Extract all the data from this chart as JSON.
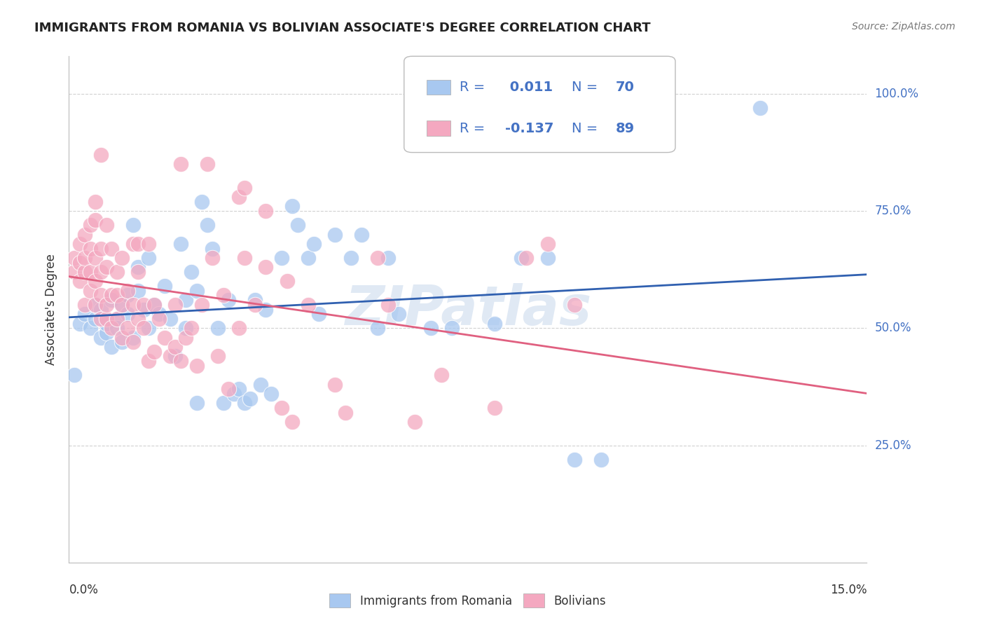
{
  "title": "IMMIGRANTS FROM ROMANIA VS BOLIVIAN ASSOCIATE'S DEGREE CORRELATION CHART",
  "source": "Source: ZipAtlas.com",
  "ylabel": "Associate's Degree",
  "yticks": [
    "25.0%",
    "50.0%",
    "75.0%",
    "100.0%"
  ],
  "ytick_vals": [
    0.25,
    0.5,
    0.75,
    1.0
  ],
  "xlim": [
    0.0,
    0.15
  ],
  "ylim": [
    0.0,
    1.08
  ],
  "watermark": "ZIPatlas",
  "blue_color": "#A8C8F0",
  "pink_color": "#F4A8C0",
  "blue_line_color": "#3060B0",
  "pink_line_color": "#E06080",
  "label_color": "#4472C4",
  "legend_text_color": "#1A237E",
  "romania_scatter": [
    [
      0.002,
      0.51
    ],
    [
      0.003,
      0.53
    ],
    [
      0.004,
      0.5
    ],
    [
      0.005,
      0.52
    ],
    [
      0.005,
      0.55
    ],
    [
      0.006,
      0.48
    ],
    [
      0.006,
      0.54
    ],
    [
      0.007,
      0.49
    ],
    [
      0.007,
      0.51
    ],
    [
      0.008,
      0.46
    ],
    [
      0.008,
      0.56
    ],
    [
      0.009,
      0.52
    ],
    [
      0.009,
      0.5
    ],
    [
      0.01,
      0.47
    ],
    [
      0.01,
      0.55
    ],
    [
      0.011,
      0.53
    ],
    [
      0.011,
      0.57
    ],
    [
      0.012,
      0.48
    ],
    [
      0.012,
      0.72
    ],
    [
      0.013,
      0.58
    ],
    [
      0.013,
      0.63
    ],
    [
      0.014,
      0.54
    ],
    [
      0.015,
      0.5
    ],
    [
      0.015,
      0.65
    ],
    [
      0.016,
      0.55
    ],
    [
      0.017,
      0.53
    ],
    [
      0.018,
      0.59
    ],
    [
      0.019,
      0.52
    ],
    [
      0.02,
      0.44
    ],
    [
      0.021,
      0.68
    ],
    [
      0.022,
      0.5
    ],
    [
      0.022,
      0.56
    ],
    [
      0.023,
      0.62
    ],
    [
      0.024,
      0.34
    ],
    [
      0.024,
      0.58
    ],
    [
      0.025,
      0.77
    ],
    [
      0.026,
      0.72
    ],
    [
      0.027,
      0.67
    ],
    [
      0.028,
      0.5
    ],
    [
      0.029,
      0.34
    ],
    [
      0.03,
      0.56
    ],
    [
      0.031,
      0.36
    ],
    [
      0.032,
      0.37
    ],
    [
      0.033,
      0.34
    ],
    [
      0.034,
      0.35
    ],
    [
      0.035,
      0.56
    ],
    [
      0.036,
      0.38
    ],
    [
      0.037,
      0.54
    ],
    [
      0.038,
      0.36
    ],
    [
      0.04,
      0.65
    ],
    [
      0.042,
      0.76
    ],
    [
      0.043,
      0.72
    ],
    [
      0.045,
      0.65
    ],
    [
      0.046,
      0.68
    ],
    [
      0.047,
      0.53
    ],
    [
      0.05,
      0.7
    ],
    [
      0.053,
      0.65
    ],
    [
      0.055,
      0.7
    ],
    [
      0.058,
      0.5
    ],
    [
      0.06,
      0.65
    ],
    [
      0.062,
      0.53
    ],
    [
      0.068,
      0.5
    ],
    [
      0.072,
      0.5
    ],
    [
      0.08,
      0.51
    ],
    [
      0.085,
      0.65
    ],
    [
      0.09,
      0.65
    ],
    [
      0.095,
      0.22
    ],
    [
      0.1,
      0.22
    ],
    [
      0.13,
      0.97
    ],
    [
      0.001,
      0.4
    ]
  ],
  "bolivia_scatter": [
    [
      0.001,
      0.62
    ],
    [
      0.001,
      0.65
    ],
    [
      0.002,
      0.6
    ],
    [
      0.002,
      0.64
    ],
    [
      0.002,
      0.68
    ],
    [
      0.003,
      0.55
    ],
    [
      0.003,
      0.62
    ],
    [
      0.003,
      0.65
    ],
    [
      0.003,
      0.7
    ],
    [
      0.004,
      0.58
    ],
    [
      0.004,
      0.62
    ],
    [
      0.004,
      0.67
    ],
    [
      0.004,
      0.72
    ],
    [
      0.005,
      0.55
    ],
    [
      0.005,
      0.6
    ],
    [
      0.005,
      0.65
    ],
    [
      0.005,
      0.73
    ],
    [
      0.005,
      0.77
    ],
    [
      0.006,
      0.52
    ],
    [
      0.006,
      0.57
    ],
    [
      0.006,
      0.62
    ],
    [
      0.006,
      0.67
    ],
    [
      0.007,
      0.52
    ],
    [
      0.007,
      0.55
    ],
    [
      0.007,
      0.63
    ],
    [
      0.007,
      0.72
    ],
    [
      0.008,
      0.5
    ],
    [
      0.008,
      0.57
    ],
    [
      0.008,
      0.67
    ],
    [
      0.009,
      0.52
    ],
    [
      0.009,
      0.57
    ],
    [
      0.009,
      0.62
    ],
    [
      0.01,
      0.48
    ],
    [
      0.01,
      0.55
    ],
    [
      0.01,
      0.65
    ],
    [
      0.011,
      0.5
    ],
    [
      0.011,
      0.58
    ],
    [
      0.012,
      0.47
    ],
    [
      0.012,
      0.55
    ],
    [
      0.012,
      0.68
    ],
    [
      0.013,
      0.52
    ],
    [
      0.013,
      0.62
    ],
    [
      0.013,
      0.68
    ],
    [
      0.014,
      0.5
    ],
    [
      0.014,
      0.55
    ],
    [
      0.015,
      0.43
    ],
    [
      0.015,
      0.68
    ],
    [
      0.016,
      0.45
    ],
    [
      0.016,
      0.55
    ],
    [
      0.017,
      0.52
    ],
    [
      0.018,
      0.48
    ],
    [
      0.019,
      0.44
    ],
    [
      0.02,
      0.46
    ],
    [
      0.02,
      0.55
    ],
    [
      0.021,
      0.43
    ],
    [
      0.021,
      0.85
    ],
    [
      0.022,
      0.48
    ],
    [
      0.023,
      0.5
    ],
    [
      0.024,
      0.42
    ],
    [
      0.025,
      0.55
    ],
    [
      0.026,
      0.85
    ],
    [
      0.027,
      0.65
    ],
    [
      0.028,
      0.44
    ],
    [
      0.029,
      0.57
    ],
    [
      0.03,
      0.37
    ],
    [
      0.032,
      0.5
    ],
    [
      0.033,
      0.65
    ],
    [
      0.035,
      0.55
    ],
    [
      0.037,
      0.63
    ],
    [
      0.037,
      0.75
    ],
    [
      0.04,
      0.33
    ],
    [
      0.041,
      0.6
    ],
    [
      0.042,
      0.3
    ],
    [
      0.045,
      0.55
    ],
    [
      0.05,
      0.38
    ],
    [
      0.052,
      0.32
    ],
    [
      0.058,
      0.65
    ],
    [
      0.06,
      0.55
    ],
    [
      0.065,
      0.3
    ],
    [
      0.07,
      0.4
    ],
    [
      0.08,
      0.33
    ],
    [
      0.086,
      0.65
    ],
    [
      0.09,
      0.68
    ],
    [
      0.095,
      0.55
    ],
    [
      0.006,
      0.87
    ],
    [
      0.032,
      0.78
    ],
    [
      0.033,
      0.8
    ]
  ]
}
